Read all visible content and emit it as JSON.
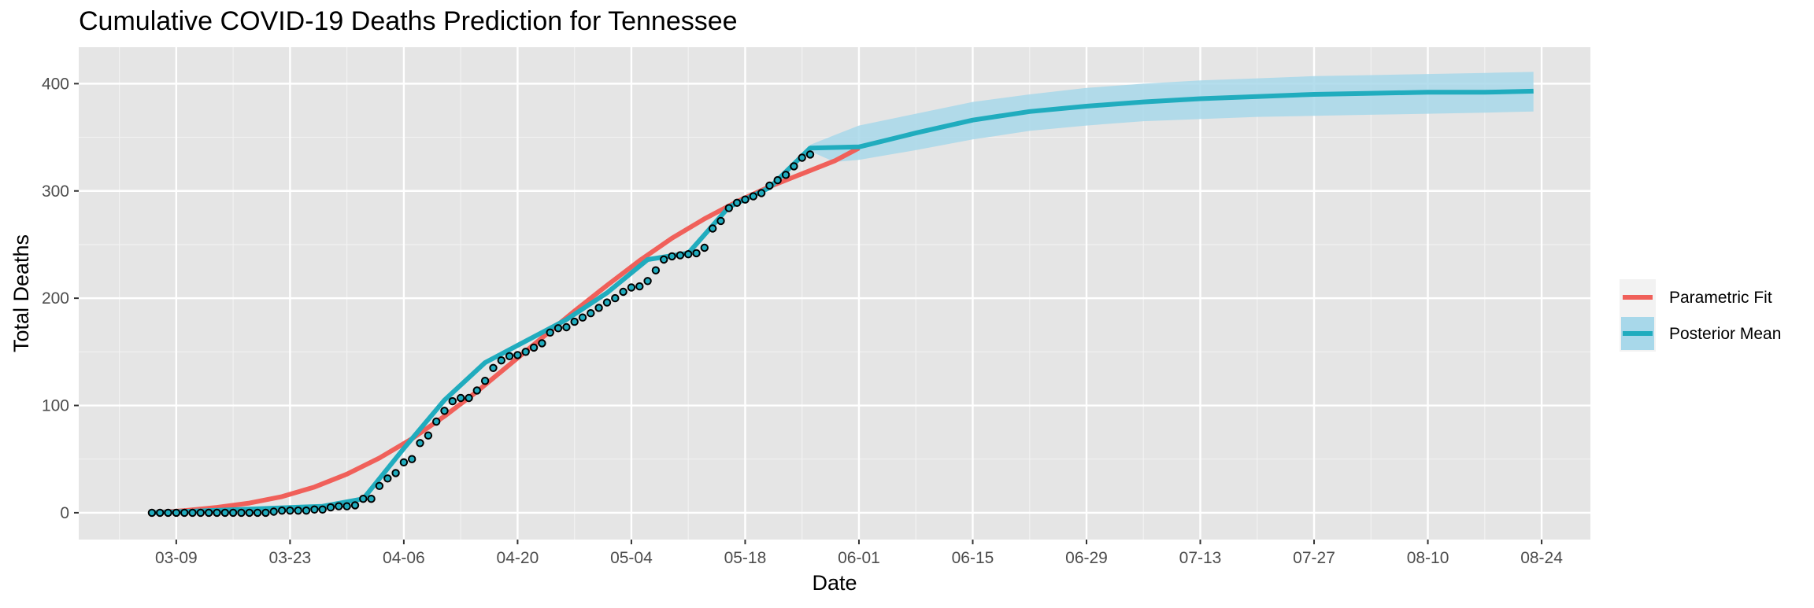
{
  "chart_data": {
    "type": "line",
    "title": "Cumulative COVID-19 Deaths Prediction for Tennessee",
    "xlabel": "Date",
    "ylabel": "Total Deaths",
    "x_range": [
      "2020-02-26",
      "2020-08-30"
    ],
    "xlim": [
      "2020-02-26",
      "2020-08-30"
    ],
    "ylim": [
      -25,
      434
    ],
    "x_ticks": [
      "03-09",
      "03-23",
      "04-06",
      "04-20",
      "05-04",
      "05-18",
      "06-01",
      "06-15",
      "06-29",
      "07-13",
      "07-27",
      "08-10",
      "08-24"
    ],
    "x_tick_dates": [
      "2020-03-09",
      "2020-03-23",
      "2020-04-06",
      "2020-04-20",
      "2020-05-04",
      "2020-05-18",
      "2020-06-01",
      "2020-06-15",
      "2020-06-29",
      "2020-07-13",
      "2020-07-27",
      "2020-08-10",
      "2020-08-24"
    ],
    "y_ticks": [
      0,
      100,
      200,
      300,
      400
    ],
    "grid": true,
    "legend_position": "right",
    "colors": {
      "panel_background": "#e5e5e5",
      "grid": "#ffffff",
      "parametric_fit": "#f0605a",
      "posterior_mean": "#20acbe",
      "band": "#a8d8ea",
      "points_fill": "#20acbe",
      "points_edge": "#000000"
    },
    "series": [
      {
        "name": "Parametric Fit",
        "type": "line",
        "x": [
          "2020-03-06",
          "2020-03-10",
          "2020-03-14",
          "2020-03-18",
          "2020-03-22",
          "2020-03-26",
          "2020-03-30",
          "2020-04-03",
          "2020-04-07",
          "2020-04-11",
          "2020-04-15",
          "2020-04-19",
          "2020-04-23",
          "2020-04-27",
          "2020-05-01",
          "2020-05-05",
          "2020-05-09",
          "2020-05-13",
          "2020-05-17",
          "2020-05-21",
          "2020-05-25",
          "2020-05-29",
          "2020-06-01"
        ],
        "y": [
          0,
          2,
          5,
          9,
          15,
          24,
          36,
          51,
          69,
          90,
          113,
          138,
          163,
          188,
          212,
          235,
          256,
          274,
          290,
          304,
          316,
          328,
          340
        ]
      },
      {
        "name": "Posterior Mean",
        "type": "line",
        "x": [
          "2020-03-06",
          "2020-03-27",
          "2020-04-01",
          "2020-04-06",
          "2020-04-11",
          "2020-04-16",
          "2020-04-21",
          "2020-04-26",
          "2020-05-01",
          "2020-05-06",
          "2020-05-11",
          "2020-05-16",
          "2020-05-21",
          "2020-05-26",
          "2020-06-01",
          "2020-06-08",
          "2020-06-15",
          "2020-06-22",
          "2020-06-29",
          "2020-07-06",
          "2020-07-13",
          "2020-07-20",
          "2020-07-27",
          "2020-08-03",
          "2020-08-10",
          "2020-08-17",
          "2020-08-23"
        ],
        "y": [
          0,
          6,
          13,
          60,
          105,
          140,
          160,
          180,
          205,
          236,
          242,
          285,
          303,
          340,
          341,
          354,
          366,
          374,
          379,
          383,
          386,
          388,
          390,
          391,
          392,
          392,
          393
        ]
      },
      {
        "name": "Posterior band",
        "type": "area",
        "x": [
          "2020-05-26",
          "2020-05-29",
          "2020-06-01",
          "2020-06-08",
          "2020-06-15",
          "2020-06-22",
          "2020-06-29",
          "2020-07-06",
          "2020-07-13",
          "2020-07-20",
          "2020-07-27",
          "2020-08-03",
          "2020-08-10",
          "2020-08-17",
          "2020-08-23"
        ],
        "lower": [
          337,
          327,
          329,
          338,
          348,
          356,
          361,
          365,
          367,
          369,
          370,
          371,
          372,
          373,
          374
        ],
        "upper": [
          343,
          352,
          361,
          372,
          383,
          390,
          396,
          400,
          403,
          405,
          407,
          408,
          409,
          410,
          411
        ]
      },
      {
        "name": "Observed",
        "type": "scatter",
        "x": [
          "2020-03-06",
          "2020-03-07",
          "2020-03-08",
          "2020-03-09",
          "2020-03-10",
          "2020-03-11",
          "2020-03-12",
          "2020-03-13",
          "2020-03-14",
          "2020-03-15",
          "2020-03-16",
          "2020-03-17",
          "2020-03-18",
          "2020-03-19",
          "2020-03-20",
          "2020-03-21",
          "2020-03-22",
          "2020-03-23",
          "2020-03-24",
          "2020-03-25",
          "2020-03-26",
          "2020-03-27",
          "2020-03-28",
          "2020-03-29",
          "2020-03-30",
          "2020-03-31",
          "2020-04-01",
          "2020-04-02",
          "2020-04-03",
          "2020-04-04",
          "2020-04-05",
          "2020-04-06",
          "2020-04-07",
          "2020-04-08",
          "2020-04-09",
          "2020-04-10",
          "2020-04-11",
          "2020-04-12",
          "2020-04-13",
          "2020-04-14",
          "2020-04-15",
          "2020-04-16",
          "2020-04-17",
          "2020-04-18",
          "2020-04-19",
          "2020-04-20",
          "2020-04-21",
          "2020-04-22",
          "2020-04-23",
          "2020-04-24",
          "2020-04-25",
          "2020-04-26",
          "2020-04-27",
          "2020-04-28",
          "2020-04-29",
          "2020-04-30",
          "2020-05-01",
          "2020-05-02",
          "2020-05-03",
          "2020-05-04",
          "2020-05-05",
          "2020-05-06",
          "2020-05-07",
          "2020-05-08",
          "2020-05-09",
          "2020-05-10",
          "2020-05-11",
          "2020-05-12",
          "2020-05-13",
          "2020-05-14",
          "2020-05-15",
          "2020-05-16",
          "2020-05-17",
          "2020-05-18",
          "2020-05-19",
          "2020-05-20",
          "2020-05-21",
          "2020-05-22",
          "2020-05-23",
          "2020-05-24",
          "2020-05-25",
          "2020-05-26"
        ],
        "y": [
          0,
          0,
          0,
          0,
          0,
          0,
          0,
          0,
          0,
          0,
          0,
          0,
          0,
          0,
          0,
          1,
          2,
          2,
          2,
          2,
          3,
          3,
          5,
          6,
          6,
          7,
          13,
          13,
          25,
          32,
          37,
          47,
          50,
          65,
          72,
          85,
          95,
          104,
          107,
          107,
          114,
          123,
          135,
          142,
          146,
          147,
          150,
          154,
          158,
          168,
          172,
          173,
          178,
          182,
          186,
          191,
          196,
          200,
          206,
          210,
          211,
          216,
          226,
          236,
          239,
          240,
          241,
          242,
          247,
          265,
          272,
          284,
          289,
          292,
          295,
          298,
          305,
          310,
          315,
          323,
          331,
          334
        ]
      }
    ],
    "legend": [
      {
        "label": "Parametric Fit",
        "color": "#f0605a"
      },
      {
        "label": "Posterior Mean",
        "color": "#20acbe"
      }
    ]
  }
}
